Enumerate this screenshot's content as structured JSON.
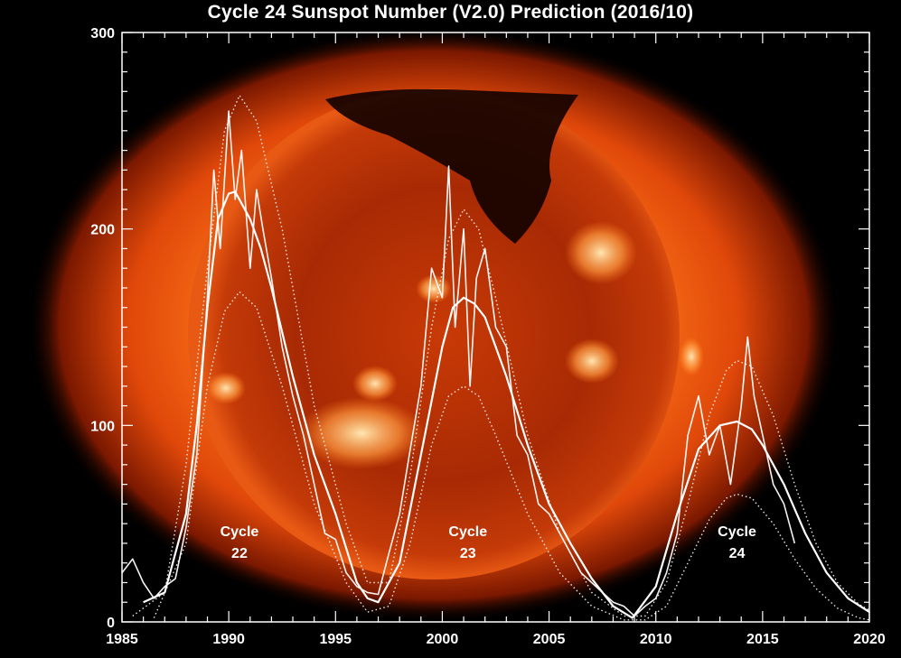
{
  "chart_data": {
    "type": "line",
    "title": "Cycle 24 Sunspot Number (V2.0) Prediction (2016/10)",
    "xlabel": "",
    "ylabel": "",
    "xlim": [
      1985,
      2020
    ],
    "ylim": [
      0,
      300
    ],
    "x_ticks": [
      "1985",
      "1990",
      "1995",
      "2000",
      "2005",
      "2010",
      "2015",
      "2020"
    ],
    "y_ticks": [
      "0",
      "100",
      "200",
      "300"
    ],
    "grid": false,
    "background": "solar X-ray image",
    "colors": {
      "lines": "#ffffff",
      "frame": "#ffffff",
      "background": "#000000"
    },
    "annotations": [
      {
        "line1": "Cycle",
        "line2": "22",
        "x": 1990.5,
        "y": 30
      },
      {
        "line1": "Cycle",
        "line2": "23",
        "x": 2001.2,
        "y": 30
      },
      {
        "line1": "Cycle",
        "line2": "24",
        "x": 2013.8,
        "y": 30
      }
    ],
    "series": [
      {
        "role": "monthly sunspot number",
        "x": [
          1985.0,
          1985.5,
          1986.0,
          1986.5,
          1987.0,
          1987.5,
          1988.0,
          1988.5,
          1989.0,
          1989.3,
          1989.6,
          1990.0,
          1990.3,
          1990.6,
          1991.0,
          1991.3,
          1991.6,
          1992.0,
          1992.5,
          1993.0,
          1993.5,
          1994.0,
          1994.5,
          1995.0,
          1995.5,
          1996.0,
          1996.5,
          1997.0,
          1997.5,
          1998.0,
          1998.5,
          1999.0,
          1999.5,
          2000.0,
          2000.3,
          2000.6,
          2001.0,
          2001.3,
          2001.6,
          2002.0,
          2002.5,
          2003.0,
          2003.5,
          2004.0,
          2004.5,
          2005.0,
          2005.5,
          2006.0,
          2006.5,
          2007.0,
          2007.5,
          2008.0,
          2008.5,
          2009.0,
          2009.5,
          2010.0,
          2010.5,
          2011.0,
          2011.5,
          2012.0,
          2012.5,
          2013.0,
          2013.5,
          2014.0,
          2014.3,
          2014.6,
          2015.0,
          2015.5,
          2016.0,
          2016.5
        ],
        "values": [
          25,
          32,
          20,
          12,
          18,
          22,
          48,
          85,
          165,
          230,
          190,
          260,
          215,
          240,
          180,
          220,
          200,
          175,
          140,
          115,
          95,
          70,
          45,
          42,
          25,
          18,
          15,
          14,
          35,
          55,
          88,
          120,
          180,
          165,
          232,
          150,
          200,
          120,
          175,
          190,
          150,
          140,
          95,
          85,
          60,
          55,
          45,
          35,
          25,
          20,
          15,
          10,
          8,
          3,
          8,
          12,
          25,
          45,
          95,
          115,
          85,
          100,
          70,
          110,
          145,
          115,
          95,
          70,
          60,
          40
        ]
      },
      {
        "role": "smoothed sunspot number",
        "x": [
          1986.0,
          1987.0,
          1988.0,
          1988.5,
          1989.0,
          1989.5,
          1990.0,
          1990.3,
          1991.0,
          1991.5,
          1992.0,
          1993.0,
          1994.0,
          1995.0,
          1996.0,
          1996.5,
          1997.0,
          1998.0,
          1999.0,
          2000.0,
          2000.5,
          2001.0,
          2001.5,
          2002.0,
          2003.0,
          2004.0,
          2005.0,
          2006.0,
          2007.0,
          2008.0,
          2008.9,
          2010.0,
          2011.0,
          2012.0,
          2013.0,
          2013.8,
          2014.5,
          2015.0,
          2016.0,
          2017.0,
          2018.0,
          2019.0,
          2020.0
        ],
        "values": [
          10,
          15,
          55,
          100,
          160,
          205,
          218,
          219,
          205,
          190,
          170,
          125,
          85,
          55,
          20,
          12,
          10,
          30,
          85,
          140,
          160,
          165,
          162,
          155,
          125,
          90,
          60,
          40,
          22,
          8,
          2,
          18,
          55,
          88,
          100,
          102,
          98,
          90,
          70,
          45,
          25,
          12,
          5
        ]
      },
      {
        "role": "upper envelope",
        "x": [
          1985.5,
          1987.0,
          1988.0,
          1989.0,
          1989.8,
          1990.5,
          1991.3,
          1992.5,
          1994.0,
          1995.5,
          1996.5,
          1997.5,
          1998.5,
          1999.5,
          2000.3,
          2001.0,
          2001.7,
          2002.5,
          2004.0,
          2005.5,
          2007.0,
          2008.5,
          2009.5,
          2010.5,
          2011.5,
          2012.5,
          2013.3,
          2013.8,
          2014.5,
          2015.5,
          2016.5,
          2017.5,
          2018.5,
          2019.5,
          2020.0
        ],
        "values": [
          3,
          15,
          80,
          180,
          250,
          268,
          255,
          200,
          110,
          50,
          20,
          20,
          75,
          150,
          195,
          210,
          200,
          165,
          95,
          45,
          15,
          3,
          3,
          20,
          60,
          105,
          128,
          133,
          130,
          105,
          70,
          40,
          20,
          9,
          6
        ]
      },
      {
        "role": "lower envelope",
        "x": [
          1986.5,
          1988.0,
          1989.0,
          1989.8,
          1990.5,
          1991.3,
          1992.5,
          1994.0,
          1995.5,
          1996.5,
          1997.5,
          1998.5,
          1999.5,
          2000.3,
          2001.0,
          2001.7,
          2002.5,
          2004.0,
          2005.5,
          2007.0,
          2008.5,
          2009.5,
          2010.5,
          2011.5,
          2012.5,
          2013.3,
          2013.8,
          2014.5,
          2015.5,
          2016.5,
          2017.5,
          2018.5,
          2019.5,
          2020.0
        ],
        "values": [
          2,
          40,
          120,
          158,
          168,
          160,
          120,
          60,
          20,
          5,
          8,
          40,
          90,
          115,
          120,
          115,
          95,
          55,
          25,
          8,
          1,
          1,
          8,
          30,
          52,
          63,
          65,
          63,
          50,
          32,
          17,
          7,
          2,
          1
        ]
      }
    ]
  }
}
